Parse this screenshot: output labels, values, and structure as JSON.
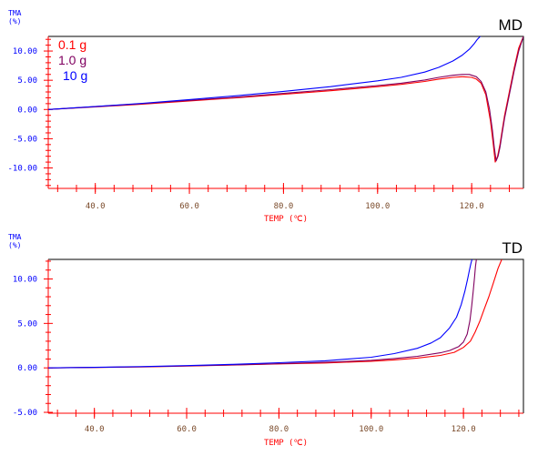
{
  "colors": {
    "axis": "#ff0000",
    "ytick": "#0000ff",
    "ylabel": "#0000ff",
    "xtick": "#7a4a2a",
    "xlabel": "#ff0000",
    "frame": "#000000",
    "red": "#ff0000",
    "purple": "#800060",
    "blue": "#0000ff"
  },
  "chart_data": [
    {
      "type": "line",
      "title": "MD",
      "ylabel_line1": "TMA",
      "ylabel_line2": "(%)",
      "xlabel": "TEMP (℃)",
      "xlim": [
        30.0,
        131.0
      ],
      "ylim": [
        -13.5,
        12.5
      ],
      "xticks": [
        40,
        60,
        80,
        100,
        120
      ],
      "xtick_labels": [
        "40.0",
        "60.0",
        "80.0",
        "100.0",
        "120.0"
      ],
      "yticks": [
        10,
        5,
        0,
        -5,
        -10
      ],
      "ytick_labels": [
        "10.00",
        "5.00",
        "0.00",
        "-5.00",
        "-10.00"
      ],
      "legend_position": "top-left",
      "series": [
        {
          "name": "0.1 g",
          "color": "#ff0000",
          "x": [
            30,
            40,
            50,
            60,
            70,
            80,
            90,
            100,
            105,
            110,
            113,
            116,
            118,
            120,
            121,
            122,
            123,
            124,
            124.6,
            125.0,
            125.5,
            126.0,
            126.5,
            127,
            128,
            129,
            130,
            131
          ],
          "y": [
            0.0,
            0.45,
            0.9,
            1.45,
            2.0,
            2.6,
            3.2,
            3.9,
            4.3,
            4.8,
            5.2,
            5.5,
            5.6,
            5.5,
            5.2,
            4.5,
            2.5,
            -2.0,
            -6.0,
            -9.0,
            -8.0,
            -6.0,
            -3.5,
            -1.0,
            3.0,
            7.0,
            10.5,
            12.5
          ]
        },
        {
          "name": "1.0 g",
          "color": "#800060",
          "x": [
            30,
            40,
            50,
            60,
            70,
            80,
            90,
            100,
            105,
            110,
            113,
            116,
            118,
            119.5,
            121,
            122,
            123,
            123.8,
            124.4,
            124.8,
            125.2,
            125.6,
            126.0,
            126.5,
            127,
            128,
            129,
            130,
            131
          ],
          "y": [
            0.0,
            0.5,
            1.0,
            1.55,
            2.1,
            2.75,
            3.4,
            4.1,
            4.5,
            5.05,
            5.5,
            5.85,
            6.0,
            6.0,
            5.6,
            4.8,
            3.0,
            0.0,
            -3.5,
            -6.5,
            -8.8,
            -8.0,
            -6.5,
            -4.0,
            -1.5,
            2.5,
            6.5,
            10.0,
            12.5
          ]
        },
        {
          "name": "10 g",
          "color": "#0000ff",
          "x": [
            30,
            40,
            50,
            60,
            70,
            80,
            90,
            100,
            105,
            110,
            113,
            116,
            118,
            119.5,
            120.5,
            121.2,
            121.7,
            122.0
          ],
          "y": [
            0.0,
            0.5,
            1.05,
            1.7,
            2.35,
            3.1,
            3.9,
            4.9,
            5.5,
            6.4,
            7.2,
            8.3,
            9.3,
            10.3,
            11.2,
            12.0,
            12.4,
            12.6
          ]
        }
      ]
    },
    {
      "type": "line",
      "title": "TD",
      "ylabel_line1": "TMA",
      "ylabel_line2": "(%)",
      "xlabel": "TEMP (℃)",
      "xlim": [
        30.0,
        133.0
      ],
      "ylim": [
        -5.1,
        12.2
      ],
      "xticks": [
        40,
        60,
        80,
        100,
        120
      ],
      "xtick_labels": [
        "40.0",
        "60.0",
        "80.0",
        "100.0",
        "120.0"
      ],
      "yticks": [
        10,
        5,
        0,
        -5
      ],
      "ytick_labels": [
        "10.00",
        "5.00",
        "0.00",
        "-5.00"
      ],
      "series": [
        {
          "name": "0.1 g",
          "color": "#ff0000",
          "x": [
            30,
            40,
            50,
            60,
            70,
            80,
            90,
            100,
            105,
            110,
            115,
            118,
            120,
            121.5,
            122.5,
            123.5,
            124.5,
            125.5,
            126.5,
            127.5,
            128.3
          ],
          "y": [
            0.0,
            0.05,
            0.1,
            0.2,
            0.32,
            0.45,
            0.55,
            0.75,
            0.9,
            1.1,
            1.4,
            1.75,
            2.3,
            3.0,
            4.0,
            5.2,
            6.6,
            8.0,
            9.6,
            11.2,
            12.2
          ]
        },
        {
          "name": "1.0 g",
          "color": "#800060",
          "x": [
            30,
            40,
            50,
            60,
            70,
            80,
            90,
            100,
            105,
            110,
            115,
            117,
            119,
            120,
            120.8,
            121.4,
            121.8,
            122.1,
            122.4,
            122.6,
            122.8
          ],
          "y": [
            0.0,
            0.05,
            0.12,
            0.22,
            0.34,
            0.47,
            0.62,
            0.85,
            1.05,
            1.3,
            1.7,
            1.95,
            2.4,
            2.9,
            3.8,
            5.3,
            7.0,
            8.6,
            10.2,
            11.4,
            12.2
          ]
        },
        {
          "name": "10 g",
          "color": "#0000ff",
          "x": [
            30,
            40,
            50,
            60,
            70,
            80,
            90,
            100,
            105,
            110,
            113,
            115,
            117,
            118.5,
            119.5,
            120.3,
            120.9,
            121.3,
            121.6,
            121.85
          ],
          "y": [
            0.0,
            0.06,
            0.14,
            0.25,
            0.4,
            0.58,
            0.8,
            1.2,
            1.6,
            2.2,
            2.8,
            3.4,
            4.5,
            5.7,
            7.1,
            8.6,
            10.0,
            11.0,
            11.7,
            12.2
          ]
        }
      ]
    }
  ]
}
